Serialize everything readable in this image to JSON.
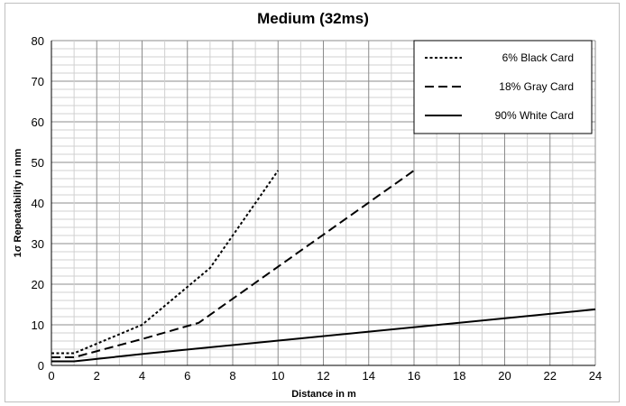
{
  "chart_data": {
    "type": "line",
    "title": "Medium (32ms)",
    "xlabel": "Distance in m",
    "ylabel": "1σ Repeatability in mm",
    "xlim": [
      0,
      24
    ],
    "ylim": [
      0,
      80
    ],
    "x_ticks": [
      0,
      2,
      4,
      6,
      8,
      10,
      12,
      14,
      16,
      18,
      20,
      22,
      24
    ],
    "y_ticks": [
      0,
      10,
      20,
      30,
      40,
      50,
      60,
      70,
      80
    ],
    "grid": true,
    "legend_position": "top-right",
    "series": [
      {
        "name": "6% Black Card",
        "line_style": "dotted",
        "color": "#000000",
        "points": [
          [
            0,
            3
          ],
          [
            1,
            3
          ],
          [
            4,
            10
          ],
          [
            7,
            24
          ],
          [
            10,
            48
          ]
        ]
      },
      {
        "name": "18% Gray Card",
        "line_style": "dashed",
        "color": "#000000",
        "points": [
          [
            0,
            2
          ],
          [
            1,
            2
          ],
          [
            4,
            6.5
          ],
          [
            6.5,
            10.5
          ],
          [
            16,
            48
          ]
        ]
      },
      {
        "name": "90% White Card",
        "line_style": "solid",
        "color": "#000000",
        "points": [
          [
            0,
            1
          ],
          [
            1,
            1
          ],
          [
            4,
            2.8
          ],
          [
            24,
            13.8
          ]
        ]
      }
    ]
  }
}
